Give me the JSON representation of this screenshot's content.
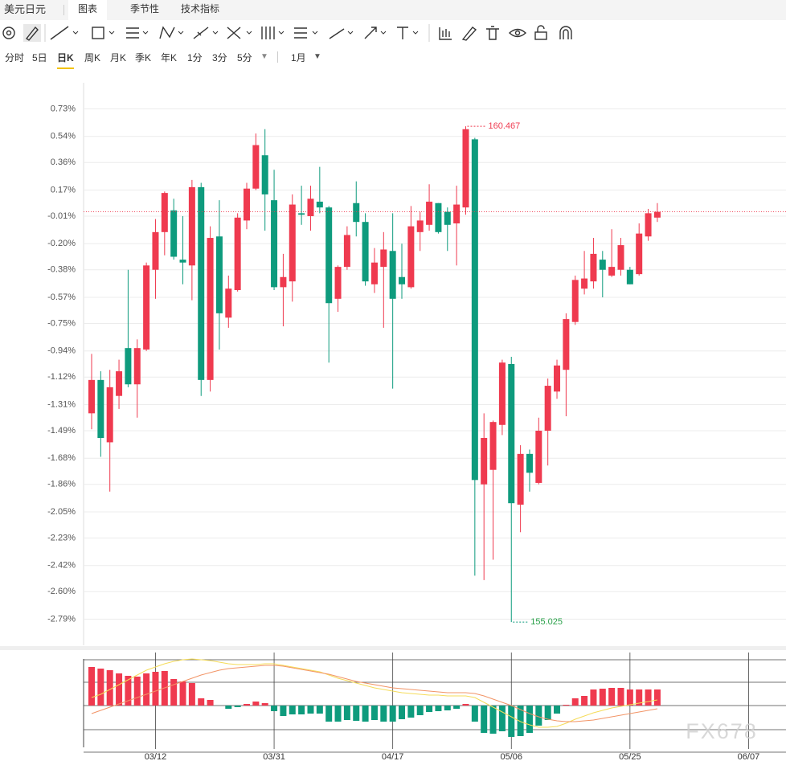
{
  "ui": {
    "tabs": [
      "美元日元",
      "图表",
      "季节性",
      "技术指标"
    ],
    "active_tab": 1,
    "periods": [
      "分时",
      "5日",
      "日K",
      "周K",
      "月K",
      "季K",
      "年K",
      "1分",
      "3分",
      "5分"
    ],
    "active_period": 2,
    "range": "1月"
  },
  "watermark": "FX678",
  "chart_data": [
    {
      "type": "candlestick",
      "up_color": "#ef3a4f",
      "down_color": "#0e9b7d",
      "grid": true,
      "x": [
        0,
        1,
        2,
        3,
        4,
        5,
        6,
        7,
        8,
        9,
        10,
        11,
        12,
        13,
        14,
        15,
        16,
        17,
        18,
        19,
        20,
        21,
        22,
        23,
        24,
        25,
        26,
        27,
        28,
        29,
        30,
        31,
        32,
        33,
        34,
        35,
        36,
        37,
        38,
        39,
        40,
        41,
        42,
        43,
        44,
        45,
        46,
        47,
        48,
        49,
        50,
        51,
        52,
        53,
        54,
        55,
        56,
        57,
        58,
        59,
        60,
        61,
        62
      ],
      "open": [
        -1.37,
        -1.14,
        -1.57,
        -1.25,
        -0.92,
        -1.17,
        -0.93,
        -0.38,
        -0.12,
        0.03,
        -0.31,
        -0.35,
        0.19,
        -1.14,
        -0.15,
        -0.71,
        -0.52,
        -0.04,
        0.18,
        0.41,
        0.1,
        -0.5,
        -0.46,
        0.01,
        -0.01,
        0.09,
        0.05,
        -0.58,
        -0.36,
        0.08,
        -0.05,
        -0.48,
        -0.36,
        -0.25,
        -0.43,
        -0.5,
        -0.12,
        -0.07,
        0.08,
        0.02,
        -0.06,
        0.05,
        0.52,
        -1.86,
        -1.76,
        -1.45,
        -1.03,
        -2.0,
        -1.65,
        -1.85,
        -1.49,
        -1.22,
        -1.07,
        -0.74,
        -0.51,
        -0.46,
        -0.31,
        -0.42,
        -0.38,
        -0.38,
        -0.41,
        -0.15,
        -0.02
      ],
      "high": [
        -0.96,
        -1.08,
        -1.07,
        -1.0,
        -0.38,
        -0.86,
        -0.33,
        -0.03,
        0.16,
        0.11,
        -0.01,
        0.24,
        0.22,
        -0.08,
        0.1,
        -0.42,
        0.01,
        0.22,
        0.56,
        0.59,
        0.31,
        -0.27,
        0.14,
        0.2,
        0.2,
        0.33,
        0.06,
        -0.35,
        -0.08,
        0.23,
        0.01,
        -0.23,
        -0.12,
        0.01,
        -0.2,
        0.06,
        0.02,
        0.21,
        0.08,
        0.05,
        0.2,
        0.61,
        0.53,
        -1.37,
        -1.42,
        -1.0,
        -0.98,
        -1.59,
        -1.62,
        -1.4,
        -1.13,
        -1.0,
        -0.68,
        -0.42,
        -0.25,
        -0.16,
        -0.25,
        -0.1,
        -0.16,
        -0.36,
        -0.06,
        0.04,
        0.08
      ],
      "low": [
        -1.48,
        -1.67,
        -1.91,
        -1.34,
        -1.19,
        -1.4,
        -0.94,
        -0.58,
        -0.28,
        -0.31,
        -0.48,
        -0.59,
        -1.25,
        -1.22,
        -0.93,
        -0.78,
        -0.53,
        -0.1,
        0.17,
        -0.11,
        -0.52,
        -0.77,
        -0.6,
        -0.07,
        -0.11,
        0.01,
        -1.02,
        -0.67,
        -0.38,
        -0.15,
        -0.49,
        -0.54,
        -0.78,
        -1.2,
        -0.58,
        -0.51,
        -0.25,
        -0.11,
        -0.13,
        -0.25,
        -0.35,
        0.0,
        -2.49,
        -2.52,
        -2.38,
        -1.52,
        -2.81,
        -2.19,
        -1.91,
        -1.86,
        -1.73,
        -1.27,
        -1.39,
        -0.76,
        -0.55,
        -0.51,
        -0.57,
        -0.43,
        -0.42,
        -0.48,
        -0.42,
        -0.18,
        -0.05
      ],
      "close": [
        -1.14,
        -1.54,
        -1.19,
        -1.08,
        -1.17,
        -0.92,
        -0.35,
        -0.12,
        0.15,
        -0.29,
        -0.33,
        0.19,
        -1.14,
        -0.16,
        -0.68,
        -0.51,
        -0.02,
        0.18,
        0.48,
        0.14,
        -0.5,
        -0.43,
        0.07,
        0.0,
        0.11,
        0.05,
        -0.61,
        -0.36,
        -0.14,
        -0.05,
        -0.46,
        -0.33,
        -0.24,
        -0.58,
        -0.48,
        -0.08,
        -0.04,
        0.09,
        -0.12,
        -0.07,
        0.07,
        0.59,
        -1.83,
        -1.54,
        -1.43,
        -1.02,
        -1.99,
        -1.65,
        -1.78,
        -1.49,
        -1.18,
        -1.04,
        -0.72,
        -0.45,
        -0.44,
        -0.27,
        -0.38,
        -0.36,
        -0.21,
        -0.48,
        -0.13,
        0.01,
        0.02
      ],
      "max_label": "160.467",
      "min_label": "155.025",
      "xlim": [
        -0.88,
        76.1
      ],
      "ylim": [
        -2.97,
        0.91
      ],
      "yticks": [
        {
          "value": 0.73,
          "label": "0.73%"
        },
        {
          "value": 0.54,
          "label": "0.54%"
        },
        {
          "value": 0.36,
          "label": "0.36%"
        },
        {
          "value": 0.17,
          "label": "0.17%"
        },
        {
          "value": -0.01,
          "label": "-0.01%"
        },
        {
          "value": -0.2,
          "label": "-0.20%"
        },
        {
          "value": -0.38,
          "label": "-0.38%"
        },
        {
          "value": -0.57,
          "label": "-0.57%"
        },
        {
          "value": -0.75,
          "label": "-0.75%"
        },
        {
          "value": -0.94,
          "label": "-0.94%"
        },
        {
          "value": -1.12,
          "label": "-1.12%"
        },
        {
          "value": -1.31,
          "label": "-1.31%"
        },
        {
          "value": -1.49,
          "label": "-1.49%"
        },
        {
          "value": -1.68,
          "label": "-1.68%"
        },
        {
          "value": -1.86,
          "label": "-1.86%"
        },
        {
          "value": -2.05,
          "label": "-2.05%"
        },
        {
          "value": -2.23,
          "label": "-2.23%"
        },
        {
          "value": -2.42,
          "label": "-2.42%"
        },
        {
          "value": -2.6,
          "label": "-2.60%"
        },
        {
          "value": -2.79,
          "label": "-2.79%"
        }
      ]
    },
    {
      "type": "macd",
      "pos_color": "#ef3a4f",
      "neg_color": "#0e9b7d",
      "x": [
        0,
        1,
        2,
        3,
        4,
        5,
        6,
        7,
        8,
        9,
        10,
        11,
        12,
        13,
        14,
        15,
        16,
        17,
        18,
        19,
        20,
        21,
        22,
        23,
        24,
        25,
        26,
        27,
        28,
        29,
        30,
        31,
        32,
        33,
        34,
        35,
        36,
        37,
        38,
        39,
        40,
        41,
        42,
        43,
        44,
        45,
        46,
        47,
        48,
        49,
        50,
        51,
        52,
        53,
        54,
        55,
        56,
        57,
        58,
        59,
        60,
        61,
        62
      ],
      "values": [
        48,
        46,
        44,
        40,
        37,
        36,
        40,
        42,
        43,
        33,
        30,
        28,
        9,
        7,
        0,
        -4,
        -2,
        2,
        5,
        3,
        -7,
        -13,
        -11,
        -11,
        -10,
        -10,
        -20,
        -20,
        -18,
        -19,
        -20,
        -18,
        -20,
        -20,
        -17,
        -15,
        -12,
        -8,
        -7,
        -6,
        -4,
        2,
        -20,
        -34,
        -35,
        -32,
        -39,
        -38,
        -34,
        -25,
        -18,
        -10,
        1,
        9,
        12,
        20,
        21,
        22,
        22,
        20,
        20,
        20,
        20
      ],
      "lines": [
        {
          "color": "#f5dc5a",
          "values": [
            10,
            14,
            20,
            26,
            32,
            38,
            44,
            48,
            52,
            55,
            57,
            58,
            57,
            56,
            54,
            52,
            51,
            51,
            51,
            52,
            52,
            50,
            48,
            46,
            44,
            42,
            38,
            34,
            31,
            28,
            25,
            22,
            20,
            18,
            16,
            15,
            14,
            13,
            13,
            12,
            12,
            12,
            10,
            4,
            -2,
            -8,
            -14,
            -20,
            -24,
            -27,
            -27,
            -26,
            -22,
            -17,
            -13,
            -9,
            -6,
            -3,
            -1,
            1,
            3,
            5,
            7
          ]
        },
        {
          "color": "#f29466",
          "values": [
            -10,
            -6,
            -2,
            2,
            6,
            10,
            14,
            18,
            22,
            26,
            30,
            34,
            38,
            41,
            44,
            46,
            47,
            48,
            49,
            50,
            50,
            49,
            47,
            45,
            43,
            41,
            39,
            36,
            33,
            30,
            28,
            26,
            24,
            22,
            21,
            20,
            19,
            18,
            17,
            16,
            16,
            16,
            15,
            12,
            8,
            4,
            0,
            -5,
            -10,
            -14,
            -17,
            -19,
            -20,
            -20,
            -19,
            -18,
            -16,
            -14,
            -12,
            -10,
            -8,
            -6,
            -4
          ]
        }
      ],
      "xlim": [
        -0.88,
        76.1
      ],
      "ylim": [
        -70,
        70
      ],
      "ygrid": [
        57,
        29,
        0,
        -30,
        -58
      ],
      "xticks": [
        {
          "value": 7,
          "label": "03/12"
        },
        {
          "value": 20,
          "label": "03/31"
        },
        {
          "value": 33,
          "label": "04/17"
        },
        {
          "value": 46,
          "label": "05/06"
        },
        {
          "value": 59,
          "label": "05/25"
        },
        {
          "value": 72,
          "label": "06/07"
        }
      ]
    }
  ]
}
